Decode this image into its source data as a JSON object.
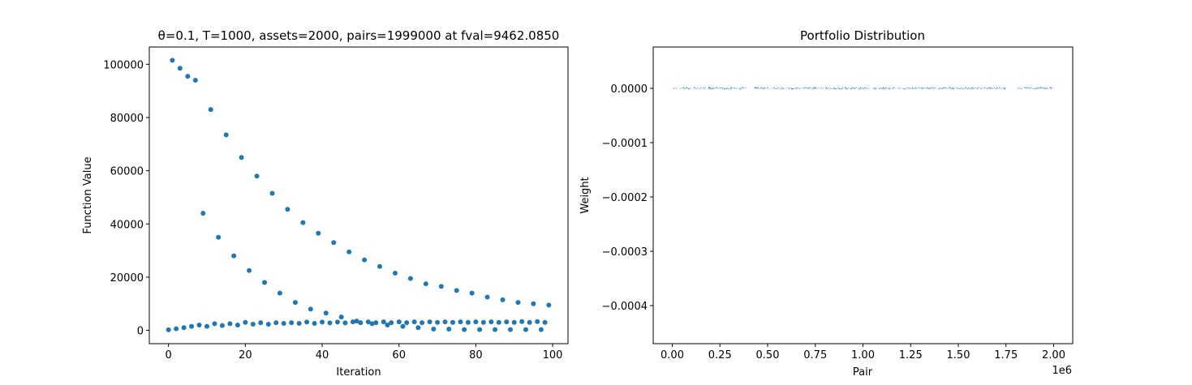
{
  "figure": {
    "background": "#ffffff",
    "marker_color": "#1f77b4"
  },
  "chart_data": [
    {
      "type": "scatter",
      "title": "θ=0.1, T=1000, assets=2000, pairs=1999000 at fval=9462.0850",
      "xlabel": "Iteration",
      "ylabel": "Function Value",
      "xlim": [
        -5,
        104
      ],
      "ylim": [
        -5000,
        106500
      ],
      "xticks": [
        0,
        20,
        40,
        60,
        80,
        100
      ],
      "xtick_labels": [
        "0",
        "20",
        "40",
        "60",
        "80",
        "100"
      ],
      "yticks": [
        0,
        20000,
        40000,
        60000,
        80000,
        100000
      ],
      "ytick_labels": [
        "0",
        "20000",
        "40000",
        "60000",
        "80000",
        "100000"
      ],
      "grid": false,
      "series": [
        {
          "x": [
            1,
            3,
            5,
            7,
            11,
            15,
            19,
            23,
            27,
            31,
            35,
            39,
            43,
            47,
            51,
            55,
            59,
            63,
            67,
            71,
            75,
            79,
            83,
            87,
            91,
            95,
            99
          ],
          "y": [
            101500,
            98500,
            95500,
            94000,
            83000,
            73500,
            65000,
            58000,
            51500,
            45500,
            40500,
            36500,
            33000,
            29500,
            26500,
            24000,
            21500,
            19500,
            17500,
            16500,
            15000,
            14000,
            12500,
            11500,
            10500,
            10000,
            9500
          ]
        },
        {
          "x": [
            9,
            13,
            17,
            21,
            25,
            29,
            33,
            37,
            41,
            45,
            49,
            53,
            57,
            61,
            65,
            69,
            73,
            77,
            81,
            85,
            89,
            93,
            97
          ],
          "y": [
            44000,
            35000,
            28000,
            22500,
            18000,
            14000,
            10500,
            8000,
            6500,
            5000,
            3500,
            2500,
            2000,
            1500,
            1000,
            500,
            500,
            300,
            300,
            300,
            300,
            300,
            300
          ]
        },
        {
          "x": [
            0,
            2,
            4,
            6,
            8,
            10,
            12,
            14,
            16,
            18,
            20,
            22,
            24,
            26,
            28,
            30,
            32,
            34,
            36,
            38,
            40,
            42,
            44,
            46,
            48,
            50,
            52,
            54,
            56,
            58,
            60,
            62,
            64,
            66,
            68,
            70,
            72,
            74,
            76,
            78,
            80,
            82,
            84,
            86,
            88,
            90,
            92,
            94,
            96,
            98
          ],
          "y": [
            200,
            600,
            1000,
            1500,
            2000,
            1500,
            2500,
            1800,
            2500,
            2000,
            3000,
            2300,
            2900,
            2300,
            2900,
            2600,
            2900,
            2600,
            3100,
            2600,
            3100,
            2800,
            3100,
            2800,
            3200,
            2900,
            3200,
            2900,
            3200,
            2900,
            3200,
            2900,
            3200,
            2900,
            3200,
            3000,
            3200,
            3000,
            3200,
            3000,
            3200,
            3000,
            3200,
            3000,
            3200,
            3000,
            3300,
            3000,
            3300,
            3000
          ]
        }
      ]
    },
    {
      "type": "bar",
      "title": "Portfolio Distribution",
      "xlabel": "Pair",
      "ylabel": "Weight",
      "x_offset_label": "1e6",
      "xlim": [
        -100000,
        2100000
      ],
      "ylim": [
        -0.00047,
        7.6e-05
      ],
      "xticks": [
        0,
        250000,
        500000,
        750000,
        1000000,
        1250000,
        1500000,
        1750000,
        2000000
      ],
      "xtick_labels": [
        "0.00",
        "0.25",
        "0.50",
        "0.75",
        "1.00",
        "1.25",
        "1.50",
        "1.75",
        "2.00"
      ],
      "yticks": [
        0,
        -0.0001,
        -0.0002,
        -0.0003,
        -0.0004
      ],
      "ytick_labels": [
        "0.0000",
        "−0.0001",
        "−0.0002",
        "−0.0003",
        "−0.0004"
      ],
      "grid": false,
      "bar_value_range": [
        -2e-07,
        2e-07
      ],
      "gaps": [
        [
          25000,
          40000
        ],
        [
          95000,
          110000
        ],
        [
          390000,
          420000
        ],
        [
          1750000,
          1810000
        ]
      ]
    }
  ]
}
